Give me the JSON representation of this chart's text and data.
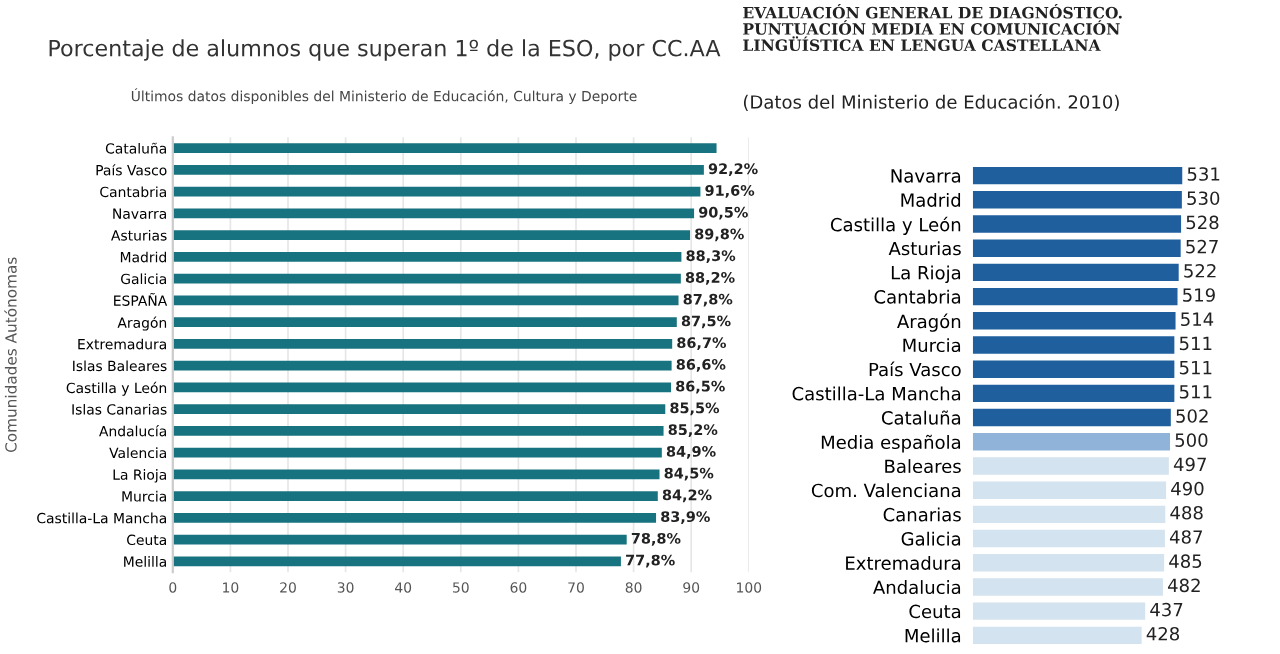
{
  "chart_data": [
    {
      "type": "bar",
      "orientation": "horizontal",
      "title": "Porcentaje de alumnos que superan 1º de la ESO, por CC.AA",
      "subtitle": "Últimos datos disponibles del Ministerio de Educación, Cultura y Deporte",
      "ylabel": "Comunidades Autónomas",
      "categories": [
        "Cataluña",
        "País Vasco",
        "Cantabria",
        "Navarra",
        "Asturias",
        "Madrid",
        "Galicia",
        "ESPAÑA",
        "Aragón",
        "Extremadura",
        "Islas Baleares",
        "Castilla y León",
        "Islas Canarias",
        "Andalucía",
        "Valencia",
        "La Rioja",
        "Murcia",
        "Castilla-La Mancha",
        "Ceuta",
        "Melilla"
      ],
      "values": [
        94.4,
        92.2,
        91.6,
        90.5,
        89.8,
        88.3,
        88.2,
        87.8,
        87.5,
        86.7,
        86.6,
        86.5,
        85.5,
        85.2,
        84.9,
        84.5,
        84.2,
        83.9,
        78.8,
        77.8
      ],
      "value_labels": [
        null,
        "92,2%",
        "91,6%",
        "90,5%",
        "89,8%",
        "88,3%",
        "88,2%",
        "87,8%",
        "87,5%",
        "86,7%",
        "86,6%",
        "86,5%",
        "85,5%",
        "85,2%",
        "84,9%",
        "84,5%",
        "84,2%",
        "83,9%",
        "78,8%",
        "77,8%"
      ],
      "color": "#17737f",
      "xlim": [
        0,
        100
      ],
      "xticks": [
        0,
        10,
        20,
        30,
        40,
        50,
        60,
        70,
        80,
        90,
        100
      ],
      "grid": "x"
    },
    {
      "type": "bar",
      "orientation": "horizontal",
      "title": "EVALUACIÓN GENERAL DE DIAGNÓSTICO.\nPUNTUACIÓN MEDIA EN COMUNICACIÓN\nLINGÜÍSTICA EN LENGUA CASTELLANA",
      "subtitle": "(Datos del Ministerio de Educación. 2010)",
      "categories": [
        "Navarra",
        "Madrid",
        "Castilla y León",
        "Asturias",
        "La Rioja",
        "Cantabria",
        "Aragón",
        "Murcia",
        "País Vasco",
        "Castilla-La Mancha",
        "Cataluña",
        "Media española",
        "Baleares",
        "Com. Valenciana",
        "Canarias",
        "Galicia",
        "Extremadura",
        "Andalucia",
        "Ceuta",
        "Melilla"
      ],
      "values": [
        531,
        530,
        528,
        527,
        522,
        519,
        514,
        511,
        511,
        511,
        502,
        500,
        497,
        490,
        488,
        487,
        485,
        482,
        437,
        428
      ],
      "colors": [
        "#1f5f9e",
        "#1f5f9e",
        "#1f5f9e",
        "#1f5f9e",
        "#1f5f9e",
        "#1f5f9e",
        "#1f5f9e",
        "#1f5f9e",
        "#1f5f9e",
        "#1f5f9e",
        "#1f5f9e",
        "#8fb3d9",
        "#d3e3ef",
        "#d3e3ef",
        "#d3e3ef",
        "#d3e3ef",
        "#d3e3ef",
        "#d3e3ef",
        "#d3e3ef",
        "#d3e3ef"
      ],
      "data_labels": true,
      "tick_labels": "y"
    }
  ]
}
